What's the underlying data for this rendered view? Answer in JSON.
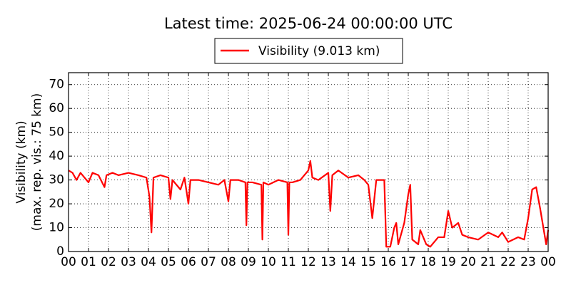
{
  "chart_data": {
    "type": "line",
    "title": "Latest time: 2025-06-24 00:00:00 UTC",
    "ylabel": [
      "Visibility (km)",
      "(max. rep. vis.: 75 km)"
    ],
    "legend": "top",
    "grid": true,
    "xlim": [
      0,
      24
    ],
    "ylim": [
      0,
      75
    ],
    "yticks": [
      0,
      10,
      20,
      30,
      40,
      50,
      60,
      70
    ],
    "xticks": [
      {
        "value": 0,
        "label": "00"
      },
      {
        "value": 1,
        "label": "01"
      },
      {
        "value": 2,
        "label": "02"
      },
      {
        "value": 3,
        "label": "03"
      },
      {
        "value": 4,
        "label": "04"
      },
      {
        "value": 5,
        "label": "05"
      },
      {
        "value": 6,
        "label": "06"
      },
      {
        "value": 7,
        "label": "07"
      },
      {
        "value": 8,
        "label": "08"
      },
      {
        "value": 9,
        "label": "09"
      },
      {
        "value": 10,
        "label": "10"
      },
      {
        "value": 11,
        "label": "11"
      },
      {
        "value": 12,
        "label": "12"
      },
      {
        "value": 13,
        "label": "13"
      },
      {
        "value": 14,
        "label": "14"
      },
      {
        "value": 15,
        "label": "15"
      },
      {
        "value": 16,
        "label": "16"
      },
      {
        "value": 17,
        "label": "17"
      },
      {
        "value": 18,
        "label": "18"
      },
      {
        "value": 19,
        "label": "19"
      },
      {
        "value": 20,
        "label": "20"
      },
      {
        "value": 21,
        "label": "21"
      },
      {
        "value": 22,
        "label": "22"
      },
      {
        "value": 23,
        "label": "23"
      },
      {
        "value": 24,
        "label": "00"
      }
    ],
    "x": [
      0,
      0.2,
      0.4,
      0.6,
      1.0,
      1.2,
      1.5,
      1.8,
      1.9,
      2.2,
      2.5,
      3.0,
      3.5,
      3.9,
      4.05,
      4.15,
      4.25,
      4.6,
      5.0,
      5.1,
      5.2,
      5.6,
      5.8,
      6.0,
      6.1,
      6.5,
      7.0,
      7.5,
      7.8,
      8.0,
      8.1,
      8.5,
      8.85,
      8.9,
      8.95,
      9.2,
      9.65,
      9.7,
      9.75,
      10.0,
      10.5,
      10.95,
      11.0,
      11.05,
      11.2,
      11.6,
      12.0,
      12.1,
      12.2,
      12.5,
      13.0,
      13.1,
      13.2,
      13.5,
      14.0,
      14.5,
      14.8,
      15.0,
      15.2,
      15.4,
      15.8,
      15.9,
      16.1,
      16.3,
      16.4,
      16.5,
      16.8,
      17.0,
      17.1,
      17.2,
      17.5,
      17.6,
      17.9,
      18.1,
      18.5,
      18.8,
      19.0,
      19.2,
      19.5,
      19.7,
      20.0,
      20.5,
      21.0,
      21.5,
      21.7,
      22.0,
      22.5,
      22.8,
      23.0,
      23.2,
      23.4,
      23.6,
      23.8,
      23.9,
      24.0
    ],
    "series": [
      {
        "name": "Visibility (9.013 km)",
        "color": "#ff0000",
        "values": [
          34,
          33,
          30,
          33,
          29,
          33,
          32,
          27,
          32,
          33,
          32,
          33,
          32,
          31,
          23,
          8,
          31,
          32,
          31,
          22,
          30,
          26,
          31,
          20,
          30,
          30,
          29,
          28,
          30,
          21,
          30,
          30,
          29,
          11,
          29,
          29,
          28,
          5,
          29,
          28,
          30,
          29,
          7,
          29,
          29,
          30,
          34,
          38,
          31,
          30,
          33,
          17,
          32,
          34,
          31,
          32,
          30,
          28,
          14,
          30,
          30,
          2,
          2,
          10,
          12,
          3,
          12,
          24,
          28,
          5,
          3,
          9,
          3,
          2,
          6,
          6,
          17,
          10,
          12,
          7,
          6,
          5,
          8,
          6,
          8,
          4,
          6,
          5,
          14,
          26,
          27,
          18,
          8,
          3,
          9
        ]
      }
    ]
  }
}
